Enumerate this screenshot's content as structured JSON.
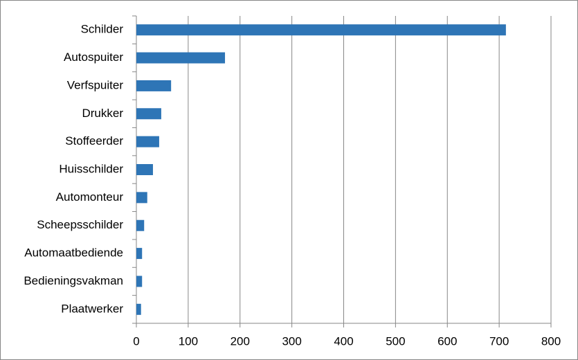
{
  "chart_data": {
    "type": "hbar",
    "categories": [
      "Schilder",
      "Autospuiter",
      "Verfspuiter",
      "Drukker",
      "Stoffeerder",
      "Huisschilder",
      "Automonteur",
      "Scheepsschilder",
      "Automaatbediende",
      "Bedieningsvakman",
      "Plaatwerker"
    ],
    "values": [
      713,
      171,
      67,
      48,
      44,
      32,
      21,
      15,
      11,
      11,
      9
    ],
    "color": "#2e75b6",
    "xlim": [
      0,
      800
    ],
    "xticks": [
      0,
      100,
      200,
      300,
      400,
      500,
      600,
      700,
      800
    ],
    "grid": true
  }
}
